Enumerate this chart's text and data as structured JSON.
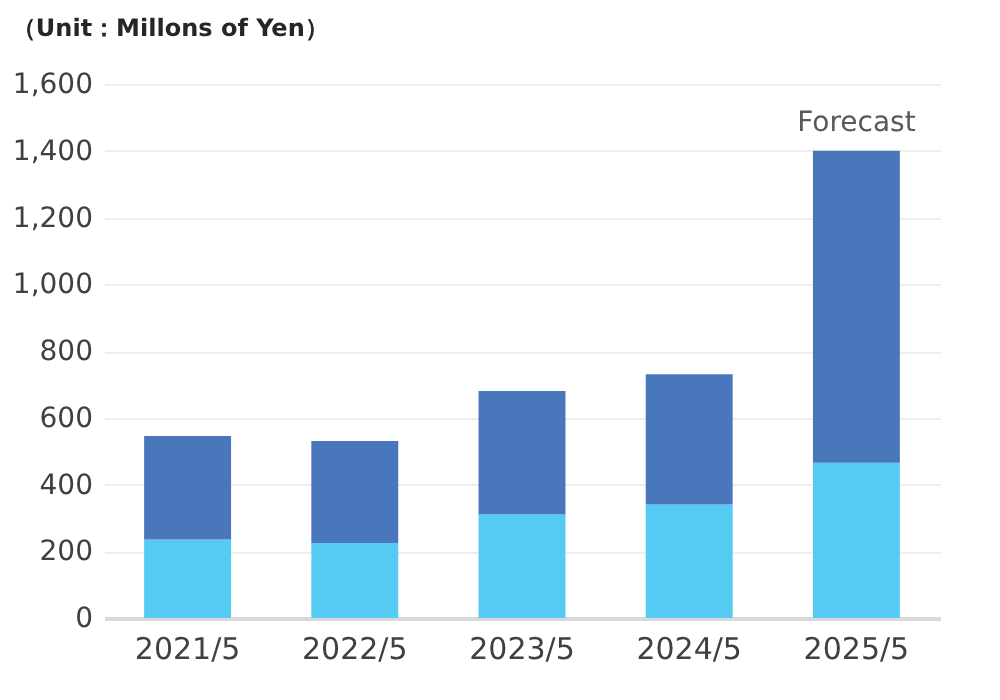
{
  "chart_data": {
    "type": "bar",
    "title": "（Unit：Millons of Yen）",
    "stacked": true,
    "categories": [
      "2021/5",
      "2022/5",
      "2023/5",
      "2024/5",
      "2025/5"
    ],
    "series": [
      {
        "color": "#55cbf3",
        "values": [
          235,
          225,
          310,
          340,
          465
        ]
      },
      {
        "color": "#4a76bb",
        "values": [
          310,
          305,
          370,
          390,
          935
        ]
      }
    ],
    "ylim": [
      0,
      1600
    ],
    "yticks": [
      0,
      200,
      400,
      600,
      800,
      {
        "value": 1000,
        "label": "1,000"
      },
      {
        "value": 1200,
        "label": "1,200"
      },
      {
        "value": 1400,
        "label": "1,400"
      },
      {
        "value": 1600,
        "label": "1,600"
      }
    ],
    "grid": "y",
    "annotations": [
      {
        "text": "Forecast",
        "x": "2025/5",
        "y": 1400
      }
    ]
  }
}
